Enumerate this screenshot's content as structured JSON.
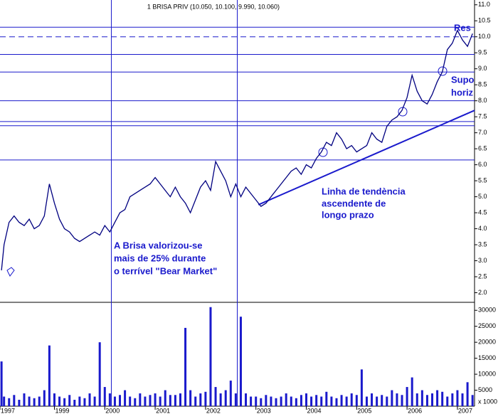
{
  "chart_data": [
    {
      "type": "line",
      "title": "1 BRISA PRIV (10.050, 10.100, 9.990, 10.060)",
      "x": [
        1997.95,
        1998.0,
        1998.1,
        1998.2,
        1998.3,
        1998.4,
        1998.5,
        1998.6,
        1998.7,
        1998.8,
        1998.9,
        1999.0,
        1999.1,
        1999.2,
        1999.3,
        1999.4,
        1999.5,
        1999.6,
        1999.7,
        1999.8,
        1999.9,
        2000.0,
        2000.1,
        2000.2,
        2000.3,
        2000.4,
        2000.5,
        2000.6,
        2000.7,
        2000.8,
        2000.9,
        2001.0,
        2001.1,
        2001.2,
        2001.3,
        2001.4,
        2001.5,
        2001.6,
        2001.7,
        2001.8,
        2001.9,
        2002.0,
        2002.1,
        2002.2,
        2002.3,
        2002.4,
        2002.5,
        2002.6,
        2002.7,
        2002.8,
        2002.9,
        2003.0,
        2003.1,
        2003.2,
        2003.3,
        2003.4,
        2003.5,
        2003.6,
        2003.7,
        2003.8,
        2003.9,
        2004.0,
        2004.1,
        2004.2,
        2004.3,
        2004.4,
        2004.5,
        2004.6,
        2004.7,
        2004.8,
        2004.9,
        2005.0,
        2005.1,
        2005.2,
        2005.3,
        2005.4,
        2005.5,
        2005.6,
        2005.7,
        2005.8,
        2005.9,
        2006.0,
        2006.1,
        2006.2,
        2006.3,
        2006.4,
        2006.5,
        2006.6,
        2006.7,
        2006.8,
        2006.9,
        2007.0,
        2007.1,
        2007.2,
        2007.3
      ],
      "values": [
        2.7,
        3.5,
        4.2,
        4.4,
        4.2,
        4.1,
        4.3,
        4.0,
        4.1,
        4.4,
        5.4,
        4.8,
        4.3,
        4.0,
        3.9,
        3.7,
        3.6,
        3.7,
        3.8,
        3.9,
        3.8,
        4.1,
        3.9,
        4.2,
        4.5,
        4.6,
        5.0,
        5.1,
        5.2,
        5.3,
        5.4,
        5.6,
        5.4,
        5.2,
        5.0,
        5.3,
        5.0,
        4.8,
        4.5,
        4.9,
        5.3,
        5.5,
        5.2,
        6.1,
        5.8,
        5.5,
        5.0,
        5.4,
        5.0,
        5.3,
        5.1,
        4.9,
        4.7,
        4.8,
        5.0,
        5.2,
        5.4,
        5.6,
        5.8,
        5.9,
        5.7,
        6.0,
        5.9,
        6.2,
        6.4,
        6.7,
        6.6,
        7.0,
        6.8,
        6.5,
        6.6,
        6.4,
        6.5,
        6.6,
        7.0,
        6.8,
        6.7,
        7.2,
        7.4,
        7.5,
        7.7,
        8.1,
        8.8,
        8.3,
        8.0,
        7.9,
        8.2,
        8.6,
        8.9,
        9.6,
        9.8,
        10.2,
        9.9,
        9.7,
        10.1
      ],
      "color": "#000080",
      "xlim": [
        1997.92,
        2007.34
      ],
      "ylim": [
        1.7,
        11.15
      ],
      "yticks": [
        {
          "value": 2,
          "label": "2.0"
        },
        2.5,
        {
          "value": 3,
          "label": "3.0"
        },
        3.5,
        {
          "value": 4,
          "label": "4.0"
        },
        4.5,
        {
          "value": 5,
          "label": "5.0"
        },
        5.5,
        {
          "value": 6,
          "label": "6.0"
        },
        6.5,
        {
          "value": 7,
          "label": "7.0"
        },
        7.5,
        {
          "value": 8,
          "label": "8.0"
        },
        8.5,
        {
          "value": 9,
          "label": "9.0"
        },
        9.5,
        {
          "value": 10,
          "label": "10.0"
        },
        10.5,
        {
          "value": 11,
          "label": "11.0"
        }
      ],
      "line_color": "#1a1acc",
      "hlines": [
        {
          "value": 10.3,
          "style": "solid"
        },
        {
          "value": 10.0,
          "style": "dashed"
        },
        {
          "value": 9.45,
          "style": "solid"
        },
        {
          "value": 8.9,
          "style": "solid"
        },
        {
          "value": 8.0,
          "style": "solid"
        },
        {
          "value": 7.35,
          "style": "solid"
        },
        {
          "value": 7.22,
          "style": "solid"
        },
        {
          "value": 6.15,
          "style": "solid"
        }
      ],
      "vlines": [
        2000.13,
        2002.63
      ],
      "trendline": {
        "x": [
          2003.05,
          2007.34
        ],
        "values": [
          4.75,
          7.7
        ]
      },
      "annotations": [
        "Res",
        "Supo",
        "horiz",
        "Linha de tendència",
        "ascendente de",
        "longo prazo",
        "A Brisa valorizou-se",
        "mais de 25%  durante",
        "o terrível \"Bear Market\""
      ]
    },
    {
      "type": "bar",
      "unit_label": "x 1000",
      "x": [
        1997.95,
        1998.0,
        1998.1,
        1998.2,
        1998.3,
        1998.4,
        1998.5,
        1998.6,
        1998.7,
        1998.8,
        1998.9,
        1999.0,
        1999.1,
        1999.2,
        1999.3,
        1999.4,
        1999.5,
        1999.6,
        1999.7,
        1999.8,
        1999.9,
        2000.0,
        2000.1,
        2000.2,
        2000.3,
        2000.4,
        2000.5,
        2000.6,
        2000.7,
        2000.8,
        2000.9,
        2001.0,
        2001.1,
        2001.2,
        2001.3,
        2001.4,
        2001.5,
        2001.6,
        2001.7,
        2001.8,
        2001.9,
        2002.0,
        2002.1,
        2002.2,
        2002.3,
        2002.4,
        2002.5,
        2002.6,
        2002.7,
        2002.8,
        2002.9,
        2003.0,
        2003.1,
        2003.2,
        2003.3,
        2003.4,
        2003.5,
        2003.6,
        2003.7,
        2003.8,
        2003.9,
        2004.0,
        2004.1,
        2004.2,
        2004.3,
        2004.4,
        2004.5,
        2004.6,
        2004.7,
        2004.8,
        2004.9,
        2005.0,
        2005.1,
        2005.2,
        2005.3,
        2005.4,
        2005.5,
        2005.6,
        2005.7,
        2005.8,
        2005.9,
        2006.0,
        2006.1,
        2006.2,
        2006.3,
        2006.4,
        2006.5,
        2006.6,
        2006.7,
        2006.8,
        2006.9,
        2007.0,
        2007.1,
        2007.2,
        2007.3
      ],
      "values": [
        14000,
        3000,
        2500,
        3500,
        2000,
        4000,
        3000,
        2500,
        3000,
        5000,
        19000,
        4000,
        3000,
        2500,
        3500,
        2000,
        3000,
        2500,
        4000,
        3000,
        20000,
        6000,
        4000,
        3000,
        3500,
        5000,
        3000,
        2500,
        4000,
        3000,
        3500,
        4000,
        3000,
        5000,
        3500,
        3500,
        4000,
        24500,
        5000,
        3000,
        4000,
        4500,
        31000,
        6000,
        4000,
        5000,
        8000,
        4000,
        28000,
        4000,
        3000,
        3000,
        2500,
        3500,
        3000,
        2500,
        3000,
        4000,
        3000,
        2500,
        3500,
        4000,
        3000,
        3500,
        3000,
        4500,
        3000,
        2500,
        3500,
        3000,
        4000,
        3500,
        11500,
        3000,
        4000,
        3000,
        3500,
        3000,
        5000,
        4000,
        3500,
        6000,
        9000,
        4000,
        5000,
        3500,
        4000,
        5000,
        4500,
        3000,
        4000,
        5000,
        4000,
        7500,
        3500
      ],
      "color": "#1a1acc",
      "xlim": [
        1997.92,
        2007.34
      ],
      "ylim": [
        0,
        32500
      ],
      "yticks": [
        5000,
        10000,
        15000,
        20000,
        25000,
        30000
      ],
      "xticks": [
        {
          "value": 1997.92,
          "label": "1997"
        },
        1999,
        2000,
        2001,
        2002,
        2003,
        2004,
        2005,
        2006,
        2007
      ]
    }
  ]
}
